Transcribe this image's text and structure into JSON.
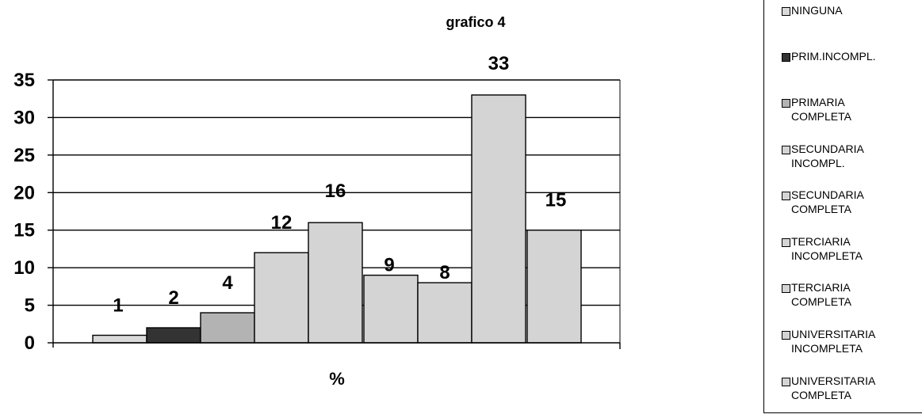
{
  "chart_data": {
    "type": "bar",
    "title": "grafico 4",
    "xlabel": "%",
    "ylabel": "",
    "ylim": [
      0,
      35
    ],
    "yticks": [
      0,
      5,
      10,
      15,
      20,
      25,
      30,
      35
    ],
    "grid": true,
    "legend_position": "right",
    "series": [
      {
        "name": "NINGUNA",
        "values": [
          1
        ],
        "color": "#d9d9d9"
      },
      {
        "name": "PRIM.INCOMPL.",
        "values": [
          2
        ],
        "color": "#333333"
      },
      {
        "name": "PRIMARIA\nCOMPLETA",
        "values": [
          4
        ],
        "color": "#b3b3b3"
      },
      {
        "name": "SECUNDARIA\nINCOMPL.",
        "values": [
          12
        ],
        "color": "#d4d4d4"
      },
      {
        "name": "SECUNDARIA\nCOMPLETA",
        "values": [
          16
        ],
        "color": "#d4d4d4"
      },
      {
        "name": "TERCIARIA\nINCOMPLETA",
        "values": [
          9
        ],
        "color": "#d4d4d4"
      },
      {
        "name": "TERCIARIA\nCOMPLETA",
        "values": [
          8
        ],
        "color": "#d4d4d4"
      },
      {
        "name": "UNIVERSITARIA\nINCOMPLETA",
        "values": [
          33
        ],
        "color": "#d4d4d4"
      },
      {
        "name": "UNIVERSITARIA\nCOMPLETA",
        "values": [
          15
        ],
        "color": "#d4d4d4"
      }
    ],
    "data_labels": [
      "1",
      "2",
      "4",
      "12",
      "16",
      "9",
      "8",
      "33",
      "15"
    ]
  }
}
